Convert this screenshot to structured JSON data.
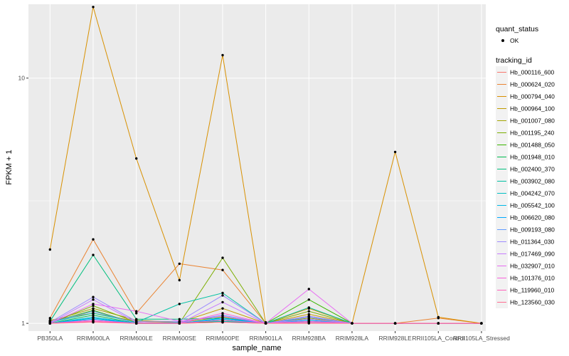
{
  "chart_data": {
    "type": "line",
    "xlabel": "sample_name",
    "ylabel": "FPKM + 1",
    "y_scale": "log10",
    "ylim": [
      0.93,
      20
    ],
    "y_ticks": [
      1,
      10
    ],
    "y_tick_labels": [
      "1",
      "10"
    ],
    "y_minor_ticks": [
      3.16
    ],
    "categories": [
      "PB350LA",
      "RRIM600LA",
      "RRIM600LE",
      "RRIM600SE",
      "RRIM600PE",
      "RRIM901LA",
      "RRIM928BA",
      "RRIM928LA",
      "RRIM928LE",
      "RRII105LA_Control",
      "RRII105LA_Stressed"
    ],
    "legend": {
      "points_title": "quant_status",
      "points_entry": "OK",
      "lines_title": "tracking_id",
      "position": "right"
    },
    "series": [
      {
        "name": "Hb_000116_600",
        "color": "#F8766D",
        "values": [
          1.0,
          1.02,
          1.0,
          1.0,
          1.01,
          1.0,
          1.01,
          1.0,
          1.0,
          1.0,
          1.0
        ]
      },
      {
        "name": "Hb_000624_020",
        "color": "#EA8331",
        "values": [
          1.05,
          2.2,
          1.1,
          1.75,
          1.65,
          1.0,
          1.07,
          1.0,
          1.0,
          1.05,
          1.0
        ]
      },
      {
        "name": "Hb_000794_040",
        "color": "#D89000",
        "values": [
          2.0,
          19.5,
          4.7,
          1.5,
          12.4,
          1.0,
          1.15,
          1.0,
          5.0,
          1.06,
          1.0
        ]
      },
      {
        "name": "Hb_000964_100",
        "color": "#C09B00",
        "values": [
          1.03,
          1.1,
          1.02,
          1.01,
          1.15,
          1.0,
          1.09,
          1.0,
          1.0,
          1.0,
          1.0
        ]
      },
      {
        "name": "Hb_001007_080",
        "color": "#A3A500",
        "values": [
          1.02,
          1.15,
          1.03,
          1.01,
          1.06,
          1.0,
          1.05,
          1.0,
          1.0,
          1.0,
          1.0
        ]
      },
      {
        "name": "Hb_001195_240",
        "color": "#7CAE00",
        "values": [
          1.0,
          1.18,
          1.01,
          1.0,
          1.85,
          1.0,
          1.12,
          1.0,
          1.0,
          1.0,
          1.0
        ]
      },
      {
        "name": "Hb_001488_050",
        "color": "#39B600",
        "values": [
          1.01,
          1.13,
          1.0,
          1.0,
          1.02,
          1.0,
          1.25,
          1.0,
          1.0,
          1.0,
          1.0
        ]
      },
      {
        "name": "Hb_001948_010",
        "color": "#00BB4E",
        "values": [
          1.0,
          1.08,
          1.0,
          1.0,
          1.03,
          1.0,
          1.02,
          1.0,
          1.0,
          1.0,
          1.0
        ]
      },
      {
        "name": "Hb_002400_370",
        "color": "#00BF7D",
        "values": [
          1.02,
          1.9,
          1.04,
          1.04,
          1.05,
          1.01,
          1.04,
          1.0,
          1.0,
          1.0,
          1.0
        ]
      },
      {
        "name": "Hb_003902_080",
        "color": "#00C1A3",
        "values": [
          1.01,
          1.1,
          1.01,
          1.2,
          1.33,
          1.0,
          1.16,
          1.0,
          1.0,
          1.0,
          1.0
        ]
      },
      {
        "name": "Hb_004242_070",
        "color": "#00BFC4",
        "values": [
          1.0,
          1.05,
          1.0,
          1.01,
          1.02,
          1.0,
          1.01,
          1.0,
          1.0,
          1.0,
          1.0
        ]
      },
      {
        "name": "Hb_005542_100",
        "color": "#00B8E7",
        "values": [
          1.0,
          1.06,
          1.0,
          1.0,
          1.04,
          1.0,
          1.03,
          1.0,
          1.0,
          1.0,
          1.0
        ]
      },
      {
        "name": "Hb_006620_080",
        "color": "#00A9FF",
        "values": [
          1.0,
          1.04,
          1.0,
          1.0,
          1.05,
          1.0,
          1.02,
          1.0,
          1.0,
          1.0,
          1.0
        ]
      },
      {
        "name": "Hb_009193_080",
        "color": "#619CFF",
        "values": [
          1.01,
          1.12,
          1.0,
          1.01,
          1.08,
          1.0,
          1.06,
          1.0,
          1.0,
          1.0,
          1.0
        ]
      },
      {
        "name": "Hb_011364_030",
        "color": "#9E8CFF",
        "values": [
          1.01,
          1.28,
          1.02,
          1.02,
          1.3,
          1.0,
          1.07,
          1.0,
          1.0,
          1.0,
          1.0
        ]
      },
      {
        "name": "Hb_017469_090",
        "color": "#C77CFF",
        "values": [
          1.0,
          1.25,
          1.01,
          1.0,
          1.22,
          1.0,
          1.04,
          1.0,
          1.0,
          1.0,
          1.0
        ]
      },
      {
        "name": "Hb_032907_010",
        "color": "#E76BF3",
        "values": [
          1.0,
          1.2,
          1.12,
          1.02,
          1.07,
          1.0,
          1.38,
          1.0,
          1.0,
          1.0,
          1.0
        ]
      },
      {
        "name": "Hb_101376_010",
        "color": "#FA62DB",
        "values": [
          1.0,
          1.03,
          1.0,
          1.0,
          1.1,
          1.0,
          1.02,
          1.0,
          1.0,
          1.0,
          1.0
        ]
      },
      {
        "name": "Hb_119960_010",
        "color": "#FF62BC",
        "values": [
          1.0,
          1.02,
          1.0,
          1.0,
          1.03,
          1.0,
          1.01,
          1.0,
          1.0,
          1.0,
          1.0
        ]
      },
      {
        "name": "Hb_123560_030",
        "color": "#FF6C91",
        "values": [
          1.0,
          1.01,
          1.0,
          1.0,
          1.01,
          1.0,
          1.0,
          1.0,
          1.0,
          1.0,
          1.0
        ]
      }
    ]
  }
}
